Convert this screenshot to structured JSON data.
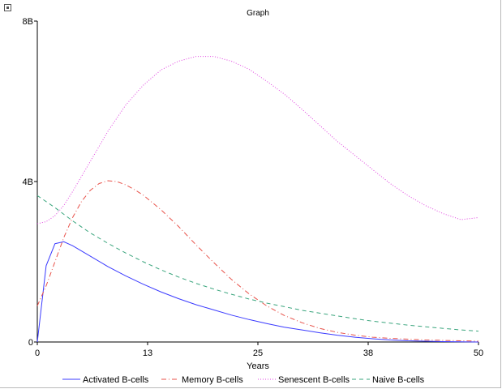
{
  "chart_data": {
    "type": "line",
    "title": "Graph",
    "xlabel": "Years",
    "ylabel": "",
    "xlim": [
      0,
      50
    ],
    "ylim": [
      0,
      8
    ],
    "x_ticks": [
      0,
      12.5,
      25,
      37.5,
      50
    ],
    "x_tick_labels": [
      "0",
      "13",
      "25",
      "38",
      "50"
    ],
    "y_ticks": [
      0,
      4,
      8
    ],
    "y_tick_labels": [
      "0",
      "4B",
      "8B"
    ],
    "grid": false,
    "legend_position": "bottom",
    "series": [
      {
        "name": "Activated B-cells",
        "color": "#3b3bff",
        "dash": "solid",
        "x": [
          0,
          1,
          2,
          3,
          4,
          6,
          8,
          10,
          12,
          14,
          16,
          18,
          20,
          22,
          24,
          26,
          28,
          30,
          32,
          34,
          36,
          38,
          40,
          42,
          44,
          46,
          48,
          50
        ],
        "y": [
          0,
          1.9,
          2.45,
          2.5,
          2.4,
          2.14,
          1.88,
          1.65,
          1.44,
          1.25,
          1.08,
          0.93,
          0.8,
          0.67,
          0.56,
          0.46,
          0.37,
          0.3,
          0.23,
          0.17,
          0.12,
          0.08,
          0.05,
          0.03,
          0.02,
          0.01,
          0.005,
          0
        ]
      },
      {
        "name": "Memory B-cells",
        "color": "#e8524a",
        "dash": "dashdot",
        "x": [
          0,
          1,
          2,
          3,
          4,
          5,
          6,
          7,
          8,
          9,
          10,
          11,
          12,
          14,
          16,
          18,
          20,
          22,
          24,
          26,
          28,
          30,
          32,
          34,
          36,
          38,
          40,
          42,
          44,
          46,
          48,
          50
        ],
        "y": [
          0.9,
          1.4,
          2.0,
          2.6,
          3.1,
          3.5,
          3.78,
          3.95,
          4.02,
          4.0,
          3.92,
          3.8,
          3.66,
          3.3,
          2.88,
          2.42,
          1.98,
          1.56,
          1.2,
          0.9,
          0.66,
          0.48,
          0.34,
          0.24,
          0.17,
          0.12,
          0.09,
          0.07,
          0.05,
          0.04,
          0.03,
          0.02
        ]
      },
      {
        "name": "Senescent B-cells",
        "color": "#e040e0",
        "dash": "dotted",
        "x": [
          0,
          1,
          2,
          3,
          4,
          6,
          8,
          10,
          12,
          14,
          16,
          18,
          20,
          22,
          24,
          26,
          28,
          30,
          32,
          34,
          36,
          38,
          40,
          42,
          44,
          46,
          48,
          50
        ],
        "y": [
          2.95,
          3.0,
          3.15,
          3.4,
          3.75,
          4.5,
          5.25,
          5.9,
          6.4,
          6.78,
          7.0,
          7.12,
          7.12,
          7.0,
          6.8,
          6.5,
          6.18,
          5.8,
          5.4,
          5.0,
          4.65,
          4.3,
          3.95,
          3.65,
          3.4,
          3.2,
          3.05,
          3.1
        ]
      },
      {
        "name": "Naive B-cells",
        "color": "#3aa57d",
        "dash": "dashed",
        "x": [
          0,
          2,
          4,
          6,
          8,
          10,
          12,
          14,
          16,
          18,
          20,
          22,
          24,
          26,
          28,
          30,
          32,
          34,
          36,
          38,
          40,
          42,
          44,
          46,
          48,
          50
        ],
        "y": [
          3.65,
          3.35,
          3.02,
          2.72,
          2.46,
          2.22,
          2.0,
          1.8,
          1.62,
          1.46,
          1.32,
          1.19,
          1.07,
          0.97,
          0.88,
          0.79,
          0.72,
          0.65,
          0.58,
          0.52,
          0.47,
          0.42,
          0.38,
          0.34,
          0.3,
          0.27
        ]
      }
    ]
  }
}
